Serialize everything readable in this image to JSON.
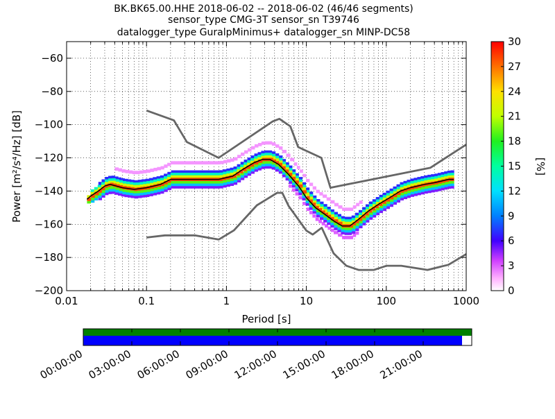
{
  "title": {
    "line1": "BK.BK65.00.HHE   2018-06-02 -- 2018-06-02  (46/46 segments)",
    "line2": "sensor_type CMG-3T sensor_sn T39746",
    "line3": "datalogger_type GuralpMinimus+ datalogger_sn MINP-DC58"
  },
  "chart_data": {
    "type": "heatmap",
    "xlabel": "Period [s]",
    "ylabel": "Power [m²/s⁴/Hz] [dB]",
    "x_scale": "log",
    "xlim": [
      0.01,
      1000
    ],
    "ylim": [
      -200,
      -50
    ],
    "x_ticks": [
      0.01,
      0.1,
      1,
      10,
      100,
      1000
    ],
    "x_tick_labels": [
      "0.01",
      "0.1",
      "1",
      "10",
      "100",
      "1000"
    ],
    "y_ticks": [
      -200,
      -180,
      -160,
      -140,
      -120,
      -100,
      -80,
      -60
    ],
    "y_tick_labels": [
      "−200",
      "−180",
      "−160",
      "−140",
      "−120",
      "−100",
      "−80",
      "−60"
    ],
    "grid": true,
    "colorbar": {
      "label": "[%]",
      "min": 0,
      "max": 30,
      "ticks": [
        0,
        3,
        6,
        9,
        12,
        15,
        18,
        21,
        24,
        27,
        30
      ],
      "tick_labels": [
        "0",
        "3",
        "6",
        "9",
        "12",
        "15",
        "18",
        "21",
        "24",
        "27",
        "30"
      ]
    },
    "noise_models": [
      {
        "name": "high noise model",
        "color": "#666666",
        "x": [
          0.1,
          0.22,
          0.32,
          0.8,
          3.8,
          4.6,
          6.3,
          7.9,
          15.4,
          20,
          354.8,
          1000
        ],
        "y": [
          -91.5,
          -97.4,
          -110.5,
          -120,
          -98,
          -96.5,
          -101,
          -113.5,
          -120,
          -138,
          -126,
          -112
        ]
      },
      {
        "name": "low noise model",
        "color": "#666666",
        "x": [
          0.1,
          0.17,
          0.4,
          0.8,
          1.24,
          2.4,
          4.3,
          5,
          6,
          10,
          12,
          15.6,
          21.9,
          31.6,
          45,
          70,
          101,
          154,
          328,
          600,
          1000
        ],
        "y": [
          -168,
          -166.7,
          -166.7,
          -169.2,
          -163.7,
          -148.6,
          -141.1,
          -141.1,
          -149,
          -163.8,
          -166.2,
          -162.1,
          -177.5,
          -185,
          -187.5,
          -187.5,
          -185,
          -185,
          -187.5,
          -184.4,
          -178
        ]
      }
    ],
    "mode_curve": {
      "name": "mode",
      "color": "#000000",
      "x": [
        0.018,
        0.02,
        0.025,
        0.03,
        0.035,
        0.05,
        0.07,
        0.1,
        0.15,
        0.2,
        0.3,
        0.5,
        0.8,
        1.2,
        1.6,
        2.2,
        2.8,
        3.5,
        4.5,
        6,
        8,
        10,
        13,
        17,
        22,
        28,
        35,
        45,
        60,
        80,
        110,
        150,
        200,
        300,
        400,
        600,
        700
      ],
      "y": [
        -145,
        -143,
        -140,
        -137,
        -136,
        -138,
        -139,
        -138,
        -136,
        -133,
        -133,
        -133,
        -133,
        -131,
        -127,
        -123,
        -121,
        -121,
        -124,
        -130,
        -137,
        -144,
        -150,
        -154,
        -158,
        -161,
        -161,
        -157,
        -152,
        -148,
        -144,
        -140,
        -138,
        -136,
        -135,
        -133,
        -133
      ]
    },
    "density_bands": [
      {
        "x": [
          0.018,
          0.02,
          0.025,
          0.03,
          0.035,
          0.05,
          0.07,
          0.1,
          0.15,
          0.2,
          0.3,
          0.5,
          0.8,
          1.2,
          1.6,
          2.2,
          2.8,
          3.5,
          4.5,
          6,
          8,
          10,
          13,
          17,
          22,
          28,
          35,
          45,
          60,
          80,
          110,
          150,
          200,
          300,
          400,
          600,
          700
        ],
        "offset": 0,
        "value": 28
      },
      {
        "x": [
          0.018,
          0.03,
          0.05,
          0.1,
          0.2,
          0.5,
          1,
          2,
          3,
          5,
          8,
          12,
          20,
          30,
          50,
          100,
          200,
          400,
          700
        ],
        "offset": 1.5,
        "value": 22
      },
      {
        "x": [
          0.018,
          0.03,
          0.05,
          0.1,
          0.2,
          0.5,
          1,
          2,
          3,
          5,
          8,
          12,
          20,
          30,
          50,
          100,
          200,
          400,
          700
        ],
        "offset": -1.5,
        "value": 19
      },
      {
        "x": [
          0.02,
          0.03,
          0.05,
          0.1,
          0.2,
          0.5,
          1,
          2,
          3,
          5,
          8,
          12,
          20,
          30,
          50,
          100,
          200,
          400,
          700
        ],
        "offset": 3,
        "value": 14
      },
      {
        "x": [
          0.02,
          0.03,
          0.05,
          0.1,
          0.2,
          0.5,
          1,
          2,
          3,
          5,
          8,
          12,
          20,
          30,
          50,
          100,
          200,
          400,
          700
        ],
        "offset": -3,
        "value": 11
      },
      {
        "x": [
          0.025,
          0.04,
          0.07,
          0.12,
          0.25,
          0.6,
          1.5,
          3,
          5,
          8,
          12,
          20,
          30,
          50,
          90,
          200,
          400,
          700
        ],
        "offset": 4.5,
        "value": 7
      },
      {
        "x": [
          0.025,
          0.04,
          0.07,
          0.12,
          0.25,
          0.6,
          1.5,
          3,
          5,
          8,
          12,
          20,
          30,
          50,
          90,
          200,
          400,
          700
        ],
        "offset": -4.5,
        "value": 5
      },
      {
        "x": [
          0.04,
          0.06,
          0.1,
          0.15,
          0.2,
          0.25,
          5,
          7,
          9,
          12,
          16,
          20,
          25,
          35,
          50
        ],
        "offset": 10,
        "value": 2
      },
      {
        "x": [
          6,
          8,
          10,
          13,
          17,
          22,
          28,
          35,
          45
        ],
        "offset": -7,
        "value": 3
      }
    ]
  },
  "timeline": {
    "tick_labels": [
      "00:00:00",
      "03:00:00",
      "06:00:00",
      "09:00:00",
      "12:00:00",
      "15:00:00",
      "18:00:00",
      "21:00:00"
    ],
    "green_coverage": 1.0,
    "blue_coverage": 0.975,
    "green_color": "#008000",
    "blue_color": "#0000ff"
  }
}
